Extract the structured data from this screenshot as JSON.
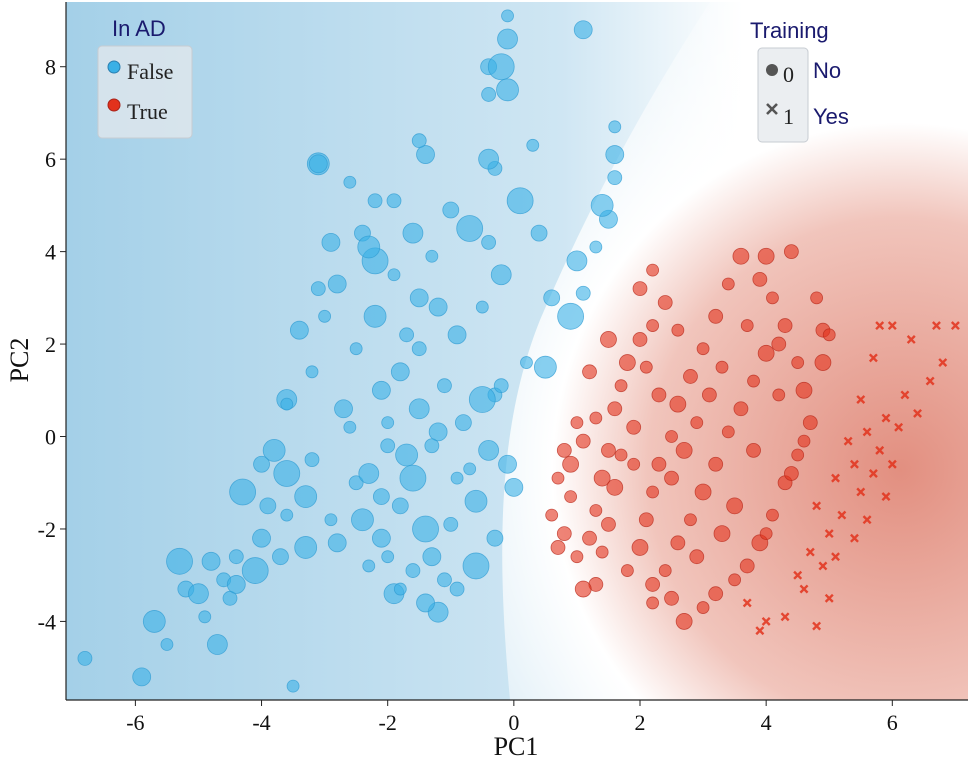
{
  "chart_data": {
    "type": "scatter",
    "xlabel": "PC1",
    "ylabel": "PC2",
    "xlim": [
      -7.1,
      7.2
    ],
    "ylim": [
      -5.7,
      9.4
    ],
    "xticks": [
      -6,
      -4,
      -2,
      0,
      2,
      4,
      6
    ],
    "yticks": [
      -4,
      -2,
      0,
      2,
      4,
      6,
      8
    ],
    "xtick_labels": [
      "-6",
      "-4",
      "-2",
      "0",
      "2",
      "4",
      "6"
    ],
    "ytick_labels": [
      "-4",
      "-2",
      "0",
      "2",
      "4",
      "6",
      "8"
    ],
    "background": "decision surface, blue (In AD = False) on the left, red (In AD = True) on the right",
    "colors": {
      "false": "#3ab0e6",
      "true": "#e2321c",
      "bg_blue": "#a9d4ea",
      "bg_red": "#e39a8c"
    },
    "legend_ad": {
      "title": "In AD",
      "items": [
        {
          "label": "False",
          "color": "#3ab0e6"
        },
        {
          "label": "True",
          "color": "#e2321c"
        }
      ],
      "placement": "top-left"
    },
    "legend_training": {
      "title": "Training",
      "items": [
        {
          "code": "0",
          "label": "No",
          "marker": "circle"
        },
        {
          "code": "1",
          "label": "Yes",
          "marker": "cross"
        }
      ],
      "placement": "top-right"
    },
    "series": [
      {
        "name": "False",
        "marker": "circle",
        "points": [
          [
            -6.8,
            -4.8
          ],
          [
            -5.9,
            -5.2
          ],
          [
            -5.5,
            -4.5
          ],
          [
            -5.7,
            -4.0
          ],
          [
            -5.2,
            -3.3
          ],
          [
            -5.3,
            -2.7
          ],
          [
            -4.5,
            -3.5
          ],
          [
            -4.7,
            -4.5
          ],
          [
            -3.5,
            -5.4
          ],
          [
            -4.8,
            -2.7
          ],
          [
            -4.4,
            -2.6
          ],
          [
            -4.0,
            -2.2
          ],
          [
            -3.6,
            -1.7
          ],
          [
            -3.3,
            -1.3
          ],
          [
            -3.9,
            -1.5
          ],
          [
            -3.6,
            -0.8
          ],
          [
            -3.2,
            -0.5
          ],
          [
            -3.6,
            0.8
          ],
          [
            -3.2,
            1.4
          ],
          [
            -3.4,
            2.3
          ],
          [
            -3.1,
            3.2
          ],
          [
            -2.9,
            4.2
          ],
          [
            -2.6,
            5.5
          ],
          [
            -3.1,
            5.9
          ],
          [
            -2.4,
            4.4
          ],
          [
            -2.2,
            3.8
          ],
          [
            -1.9,
            5.1
          ],
          [
            -1.6,
            4.4
          ],
          [
            -1.3,
            3.9
          ],
          [
            -1.2,
            2.8
          ],
          [
            -1.5,
            1.9
          ],
          [
            -1.8,
            1.4
          ],
          [
            -2.0,
            0.3
          ],
          [
            -1.7,
            -0.4
          ],
          [
            -1.8,
            -1.5
          ],
          [
            -1.4,
            -2.0
          ],
          [
            -1.6,
            -2.9
          ],
          [
            -1.9,
            -3.4
          ],
          [
            -2.3,
            -2.8
          ],
          [
            -2.8,
            -2.3
          ],
          [
            -2.5,
            -1.0
          ],
          [
            -2.7,
            0.6
          ],
          [
            -2.5,
            1.9
          ],
          [
            -2.2,
            2.6
          ],
          [
            -1.0,
            4.9
          ],
          [
            -0.7,
            4.5
          ],
          [
            -0.4,
            4.2
          ],
          [
            -0.2,
            3.5
          ],
          [
            -0.5,
            2.8
          ],
          [
            -0.9,
            2.2
          ],
          [
            -1.1,
            1.1
          ],
          [
            -1.2,
            0.1
          ],
          [
            -0.9,
            -0.9
          ],
          [
            -0.6,
            -1.4
          ],
          [
            -0.3,
            -2.2
          ],
          [
            -0.6,
            -2.8
          ],
          [
            -0.9,
            -3.3
          ],
          [
            -1.2,
            -3.8
          ],
          [
            -1.8,
            -3.3
          ],
          [
            -2.1,
            -2.2
          ],
          [
            -0.3,
            0.9
          ],
          [
            -0.1,
            -0.6
          ],
          [
            0.2,
            1.6
          ],
          [
            0.5,
            1.5
          ],
          [
            0.6,
            3.0
          ],
          [
            0.9,
            2.6
          ],
          [
            1.1,
            3.1
          ],
          [
            1.0,
            3.8
          ],
          [
            1.3,
            4.1
          ],
          [
            1.5,
            4.7
          ],
          [
            1.6,
            5.6
          ],
          [
            1.6,
            6.1
          ],
          [
            1.6,
            6.7
          ],
          [
            1.4,
            5.0
          ],
          [
            0.4,
            4.4
          ],
          [
            0.1,
            5.1
          ],
          [
            -0.3,
            5.8
          ],
          [
            -0.4,
            6.0
          ],
          [
            0.3,
            6.3
          ],
          [
            -1.4,
            6.1
          ],
          [
            -2.2,
            5.1
          ],
          [
            -2.8,
            3.3
          ],
          [
            -3.0,
            2.6
          ],
          [
            -0.1,
            7.5
          ],
          [
            -0.4,
            8.0
          ],
          [
            -0.2,
            8.0
          ],
          [
            -0.4,
            7.4
          ],
          [
            -0.1,
            8.6
          ],
          [
            -0.1,
            9.1
          ],
          [
            1.1,
            8.8
          ],
          [
            -1.5,
            6.4
          ],
          [
            -3.1,
            5.9
          ],
          [
            -3.6,
            0.7
          ],
          [
            -3.8,
            -0.3
          ],
          [
            -4.0,
            -0.6
          ],
          [
            -4.3,
            -1.2
          ],
          [
            -2.0,
            -0.2
          ],
          [
            -2.3,
            -0.8
          ],
          [
            -2.6,
            0.2
          ],
          [
            -2.1,
            1.0
          ],
          [
            -1.7,
            2.2
          ],
          [
            -1.5,
            3.0
          ],
          [
            -1.9,
            3.5
          ],
          [
            -2.3,
            4.1
          ],
          [
            -0.8,
            0.3
          ],
          [
            -0.5,
            0.8
          ],
          [
            -0.2,
            1.1
          ],
          [
            -0.4,
            -0.3
          ],
          [
            -0.7,
            -0.7
          ],
          [
            0.0,
            -1.1
          ],
          [
            -1.0,
            -1.9
          ],
          [
            -1.3,
            -2.6
          ],
          [
            -2.9,
            -1.8
          ],
          [
            -3.3,
            -2.4
          ],
          [
            -3.7,
            -2.6
          ],
          [
            -4.1,
            -2.9
          ],
          [
            -4.6,
            -3.1
          ],
          [
            -5.0,
            -3.4
          ],
          [
            -4.9,
            -3.9
          ],
          [
            -4.4,
            -3.2
          ],
          [
            -1.1,
            -3.1
          ],
          [
            -1.4,
            -3.6
          ],
          [
            -2.0,
            -2.6
          ],
          [
            -2.4,
            -1.8
          ],
          [
            -2.1,
            -1.3
          ],
          [
            -1.6,
            -0.9
          ],
          [
            -1.3,
            -0.2
          ],
          [
            -1.5,
            0.6
          ]
        ]
      },
      {
        "name": "True",
        "marker": "circle",
        "points": [
          [
            0.6,
            -1.7
          ],
          [
            0.8,
            -2.1
          ],
          [
            0.9,
            -1.3
          ],
          [
            0.9,
            -0.6
          ],
          [
            1.1,
            -0.1
          ],
          [
            1.0,
            -2.6
          ],
          [
            1.2,
            -2.2
          ],
          [
            1.3,
            -1.6
          ],
          [
            1.4,
            -0.9
          ],
          [
            1.5,
            -0.3
          ],
          [
            1.3,
            0.4
          ],
          [
            1.6,
            0.6
          ],
          [
            1.7,
            1.1
          ],
          [
            1.8,
            1.6
          ],
          [
            2.0,
            2.1
          ],
          [
            2.2,
            2.4
          ],
          [
            1.9,
            0.2
          ],
          [
            1.7,
            -0.4
          ],
          [
            1.6,
            -1.1
          ],
          [
            1.5,
            -1.9
          ],
          [
            1.4,
            -2.5
          ],
          [
            1.3,
            -3.2
          ],
          [
            1.8,
            -2.9
          ],
          [
            2.0,
            -2.4
          ],
          [
            2.1,
            -1.8
          ],
          [
            2.2,
            -1.2
          ],
          [
            2.3,
            -0.6
          ],
          [
            2.5,
            0.0
          ],
          [
            2.6,
            0.7
          ],
          [
            2.8,
            1.3
          ],
          [
            3.0,
            1.9
          ],
          [
            3.2,
            2.6
          ],
          [
            3.4,
            3.3
          ],
          [
            3.6,
            3.9
          ],
          [
            3.9,
            3.4
          ],
          [
            4.1,
            3.0
          ],
          [
            4.3,
            2.4
          ],
          [
            4.5,
            1.6
          ],
          [
            4.6,
            1.0
          ],
          [
            4.7,
            0.3
          ],
          [
            4.5,
            -0.4
          ],
          [
            4.3,
            -1.0
          ],
          [
            4.1,
            -1.7
          ],
          [
            3.9,
            -2.3
          ],
          [
            3.7,
            -2.8
          ],
          [
            3.5,
            -3.1
          ],
          [
            3.2,
            -3.4
          ],
          [
            3.0,
            -3.7
          ],
          [
            2.7,
            -4.0
          ],
          [
            2.5,
            -3.5
          ],
          [
            2.4,
            -2.9
          ],
          [
            2.6,
            -2.3
          ],
          [
            2.8,
            -1.8
          ],
          [
            3.0,
            -1.2
          ],
          [
            3.2,
            -0.6
          ],
          [
            3.4,
            0.1
          ],
          [
            3.6,
            0.6
          ],
          [
            3.8,
            1.2
          ],
          [
            4.0,
            1.8
          ],
          [
            4.2,
            2.0
          ],
          [
            3.3,
            1.5
          ],
          [
            3.1,
            0.9
          ],
          [
            2.9,
            0.3
          ],
          [
            2.7,
            -0.3
          ],
          [
            2.5,
            -0.9
          ],
          [
            2.2,
            -3.6
          ],
          [
            2.2,
            -3.2
          ],
          [
            3.7,
            2.4
          ],
          [
            4.0,
            3.9
          ],
          [
            4.4,
            4.0
          ],
          [
            4.8,
            3.0
          ],
          [
            4.9,
            2.3
          ],
          [
            5.0,
            2.2
          ],
          [
            4.9,
            1.6
          ],
          [
            2.0,
            3.2
          ],
          [
            2.2,
            3.6
          ],
          [
            2.4,
            2.9
          ],
          [
            2.6,
            2.3
          ],
          [
            1.5,
            2.1
          ],
          [
            1.2,
            1.4
          ],
          [
            1.0,
            0.3
          ],
          [
            0.8,
            -0.3
          ],
          [
            0.7,
            -0.9
          ],
          [
            1.1,
            -3.3
          ],
          [
            0.7,
            -2.4
          ],
          [
            1.9,
            -0.6
          ],
          [
            2.3,
            0.9
          ],
          [
            2.1,
            1.5
          ],
          [
            3.5,
            -1.5
          ],
          [
            3.8,
            -0.3
          ],
          [
            4.2,
            0.9
          ],
          [
            4.4,
            -0.8
          ],
          [
            4.6,
            -0.1
          ],
          [
            3.3,
            -2.1
          ],
          [
            2.9,
            -2.6
          ],
          [
            4.0,
            -2.1
          ]
        ]
      },
      {
        "name": "Training",
        "marker": "cross",
        "points": [
          [
            5.8,
            2.4
          ],
          [
            6.0,
            2.4
          ],
          [
            6.7,
            2.4
          ],
          [
            7.0,
            2.4
          ],
          [
            6.3,
            2.1
          ],
          [
            6.8,
            1.6
          ],
          [
            5.7,
            1.7
          ],
          [
            6.6,
            1.2
          ],
          [
            5.5,
            0.8
          ],
          [
            6.2,
            0.9
          ],
          [
            6.4,
            0.5
          ],
          [
            5.9,
            0.4
          ],
          [
            6.1,
            0.2
          ],
          [
            5.6,
            0.1
          ],
          [
            5.3,
            -0.1
          ],
          [
            5.8,
            -0.3
          ],
          [
            6.0,
            -0.6
          ],
          [
            5.4,
            -0.6
          ],
          [
            5.7,
            -0.8
          ],
          [
            5.1,
            -0.9
          ],
          [
            5.5,
            -1.2
          ],
          [
            5.9,
            -1.3
          ],
          [
            4.8,
            -1.5
          ],
          [
            5.2,
            -1.7
          ],
          [
            5.6,
            -1.8
          ],
          [
            5.0,
            -2.1
          ],
          [
            5.4,
            -2.2
          ],
          [
            4.7,
            -2.5
          ],
          [
            5.1,
            -2.6
          ],
          [
            4.9,
            -2.8
          ],
          [
            4.5,
            -3.0
          ],
          [
            4.6,
            -3.3
          ],
          [
            5.0,
            -3.5
          ],
          [
            3.7,
            -3.6
          ],
          [
            4.3,
            -3.9
          ],
          [
            4.8,
            -4.1
          ],
          [
            4.0,
            -4.0
          ],
          [
            3.9,
            -4.2
          ]
        ]
      }
    ]
  }
}
